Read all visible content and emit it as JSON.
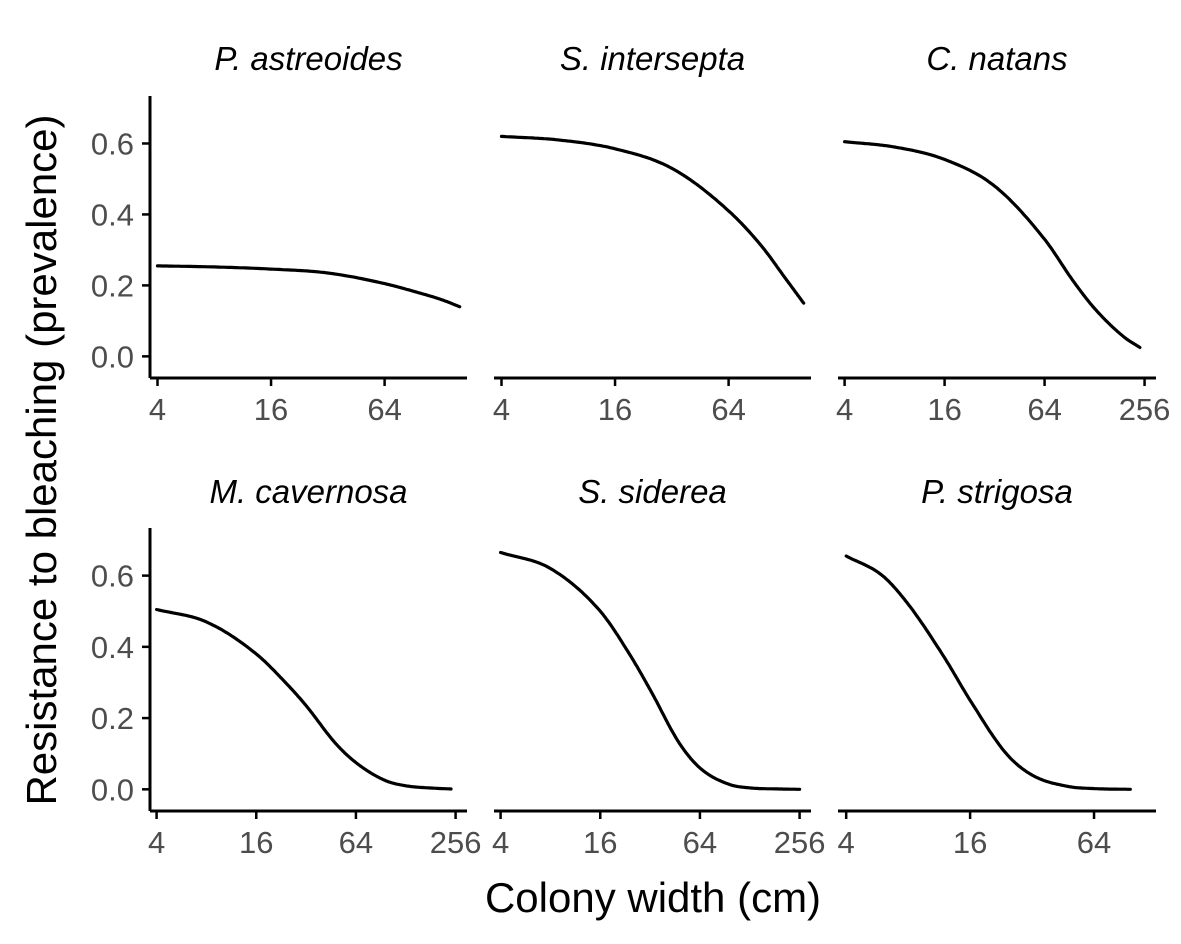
{
  "chart_data": {
    "type": "line",
    "layout": "facet-grid-2x3",
    "xlabel": "Colony width (cm)",
    "ylabel": "Resistance to bleaching (prevalence)",
    "x_scale": "log2",
    "y_ticks": [
      0.0,
      0.2,
      0.4,
      0.6
    ],
    "y_tick_labels": [
      "0.0",
      "0.2",
      "0.4",
      "0.6"
    ],
    "ylim": [
      -0.03,
      0.7
    ],
    "grid": false,
    "line_color": "#000000",
    "panels": [
      {
        "title": "P. astreoides",
        "xlim": [
          3.65,
          175
        ],
        "x_ticks": [
          4,
          16,
          64
        ],
        "x_tick_labels": [
          "4",
          "16",
          "64"
        ],
        "show_y_axis": true,
        "series": [
          {
            "x": [
              4,
              8,
              16,
              32,
              64,
              96,
              128,
              160
            ],
            "y": [
              0.255,
              0.252,
              0.246,
              0.235,
              0.205,
              0.18,
              0.16,
              0.14
            ]
          }
        ]
      },
      {
        "title": "S. intersepta",
        "xlim": [
          3.65,
          175
        ],
        "x_ticks": [
          4,
          16,
          64
        ],
        "x_tick_labels": [
          "4",
          "16",
          "64"
        ],
        "show_y_axis": false,
        "series": [
          {
            "x": [
              4,
              8,
              16,
              32,
              64,
              96,
              128,
              160
            ],
            "y": [
              0.62,
              0.61,
              0.585,
              0.53,
              0.41,
              0.31,
              0.22,
              0.15
            ]
          }
        ]
      },
      {
        "title": "C. natans",
        "xlim": [
          3.65,
          300
        ],
        "x_ticks": [
          4,
          16,
          64,
          256
        ],
        "x_tick_labels": [
          "4",
          "16",
          "64",
          "256"
        ],
        "show_y_axis": false,
        "series": [
          {
            "x": [
              4,
              8,
              16,
              32,
              64,
              96,
              128,
              192,
              240
            ],
            "y": [
              0.605,
              0.59,
              0.555,
              0.48,
              0.33,
              0.21,
              0.135,
              0.055,
              0.025
            ]
          }
        ]
      },
      {
        "title": "M. cavernosa",
        "xlim": [
          3.65,
          300
        ],
        "x_ticks": [
          4,
          16,
          64,
          256
        ],
        "x_tick_labels": [
          "4",
          "16",
          "64",
          "256"
        ],
        "show_y_axis": true,
        "series": [
          {
            "x": [
              4,
              8,
              16,
              24,
              32,
              48,
              64,
              96,
              128,
              192,
              240
            ],
            "y": [
              0.505,
              0.47,
              0.38,
              0.3,
              0.235,
              0.13,
              0.075,
              0.025,
              0.01,
              0.003,
              0.001
            ]
          }
        ]
      },
      {
        "title": "S. siderea",
        "xlim": [
          3.65,
          300
        ],
        "x_ticks": [
          4,
          16,
          64,
          256
        ],
        "x_tick_labels": [
          "4",
          "16",
          "64",
          "256"
        ],
        "show_y_axis": false,
        "series": [
          {
            "x": [
              4,
              8,
              16,
              24,
              32,
              48,
              64,
              96,
              128,
              192,
              256
            ],
            "y": [
              0.665,
              0.62,
              0.5,
              0.38,
              0.28,
              0.13,
              0.06,
              0.014,
              0.004,
              0.001,
              0.0
            ]
          }
        ]
      },
      {
        "title": "P. strigosa",
        "xlim": [
          3.65,
          128
        ],
        "x_ticks": [
          4,
          16,
          64
        ],
        "x_tick_labels": [
          "4",
          "16",
          "64"
        ],
        "show_y_axis": false,
        "series": [
          {
            "x": [
              4,
              6,
              8,
              12,
              16,
              24,
              32,
              48,
              64,
              96
            ],
            "y": [
              0.655,
              0.6,
              0.52,
              0.37,
              0.25,
              0.1,
              0.04,
              0.008,
              0.002,
              0.0
            ]
          }
        ]
      }
    ]
  }
}
